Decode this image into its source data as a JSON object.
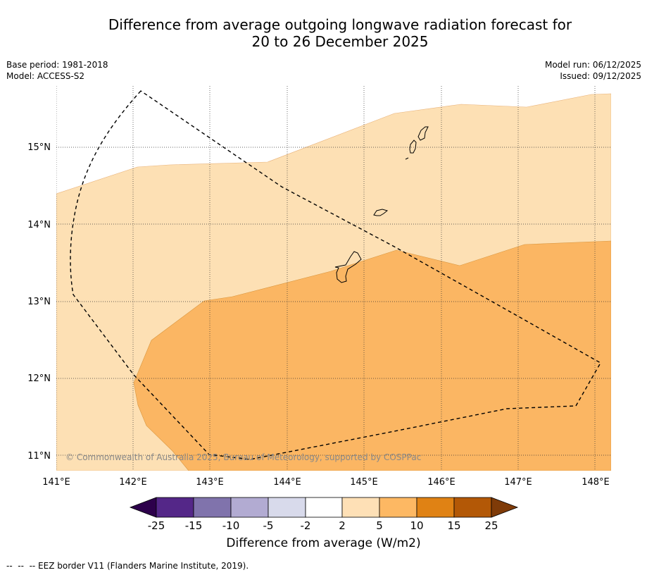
{
  "title": {
    "line1": "Difference from average outgoing longwave radiation forecast for",
    "line2": "20 to 26 December 2025"
  },
  "meta": {
    "base_period": "Base period: 1981-2018",
    "model": "Model: ACCESS-S2",
    "model_run": "Model run: 06/12/2025",
    "issued": "Issued: 09/12/2025"
  },
  "map": {
    "lon_labels": [
      "141°E",
      "142°E",
      "143°E",
      "144°E",
      "145°E",
      "146°E",
      "147°E",
      "148°E"
    ],
    "lat_labels": [
      "15°N",
      "14°N",
      "13°N",
      "12°N",
      "11°N"
    ],
    "copyright": "© Commonwealth of Australia 2025, Bureau of Meteorology, supported by COSPPac",
    "fill_colors": {
      "band_2_5": "#fde0b4",
      "band_5_10": "#fbb663"
    }
  },
  "colorbar": {
    "title": "Difference from average (W/m2)",
    "tick_labels": [
      "-25",
      "-15",
      "-10",
      "-5",
      "-2",
      "2",
      "5",
      "10",
      "15",
      "25"
    ],
    "colors": [
      "#2d004b",
      "#542788",
      "#8073ac",
      "#b2abd2",
      "#d8daeb",
      "#ffffff",
      "#fee0b6",
      "#fdb863",
      "#e08214",
      "#b35806",
      "#7f3b08"
    ]
  },
  "footnote": "--  --  -- EEZ border V11 (Flanders Marine Institute, 2019)."
}
